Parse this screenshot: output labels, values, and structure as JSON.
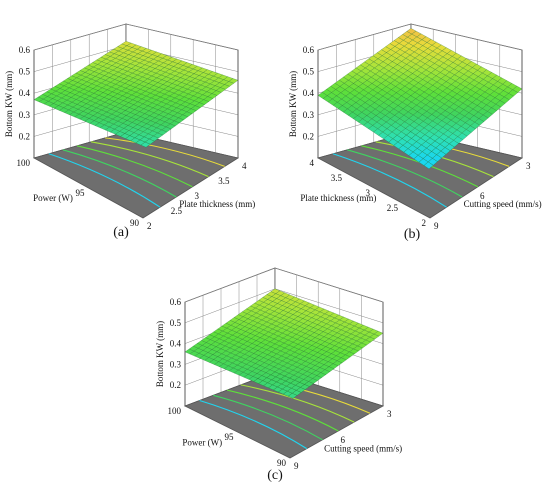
{
  "chart_data": [
    {
      "panel": "(a)",
      "type": "surface3d",
      "zlabel": "Bottom KW (mm)",
      "zticks": [
        "0.2",
        "0.3",
        "0.4",
        "0.5",
        "0.6"
      ],
      "zlim": [
        0.1,
        0.6
      ],
      "x": {
        "label": "Plate thickness (mm)",
        "ticks": [
          "2",
          "2.5",
          "3",
          "3.5",
          "4"
        ],
        "range": [
          2,
          4
        ]
      },
      "y": {
        "label": "Power (W)",
        "ticks": [
          "90",
          "95",
          "100"
        ],
        "range": [
          90,
          100
        ]
      },
      "corners": {
        "back": 0.52,
        "left": 0.37,
        "right": 0.46,
        "front": 0.27
      },
      "surface_colormap": [
        "#1ad6f0",
        "#2fe0b0",
        "#3fd460",
        "#5ee03a",
        "#a7e43a",
        "#e8dc3a",
        "#f2b04a"
      ],
      "contour_floor": true
    },
    {
      "panel": "(b)",
      "type": "surface3d",
      "zlabel": "Bottom KW (mm)",
      "zticks": [
        "0.2",
        "0.3",
        "0.4",
        "0.5",
        "0.6"
      ],
      "zlim": [
        0.1,
        0.6
      ],
      "x": {
        "label": "Cutting speed (mm/s)",
        "ticks": [
          "9",
          "6",
          "3"
        ],
        "range": [
          9,
          3
        ]
      },
      "y": {
        "label": "Plate thickness (mm)",
        "ticks": [
          "2",
          "2.5",
          "3",
          "3.5",
          "4"
        ],
        "range": [
          2,
          4
        ]
      },
      "corners": {
        "back": 0.58,
        "left": 0.39,
        "right": 0.42,
        "front": 0.17
      },
      "surface_colormap": [
        "#1ad6f0",
        "#2fe0b0",
        "#3fd460",
        "#5ee03a",
        "#a7e43a",
        "#e8dc3a",
        "#f2b04a"
      ],
      "contour_floor": true
    },
    {
      "panel": "(c)",
      "type": "surface3d",
      "zlabel": "Bottom KW (mm)",
      "zticks": [
        "0.2",
        "0.3",
        "0.4",
        "0.5",
        "0.6"
      ],
      "zlim": [
        0.1,
        0.6
      ],
      "x": {
        "label": "Cutting speed (mm/s)",
        "ticks": [
          "9",
          "6",
          "3"
        ],
        "range": [
          9,
          3
        ]
      },
      "y": {
        "label": "Power (W)",
        "ticks": [
          "90",
          "95",
          "100"
        ],
        "range": [
          90,
          100
        ]
      },
      "corners": {
        "back": 0.5,
        "left": 0.36,
        "right": 0.45,
        "front": 0.3
      },
      "surface_colormap": [
        "#1ad6f0",
        "#2fe0b0",
        "#3fd460",
        "#5ee03a",
        "#a7e43a",
        "#e8dc3a",
        "#f2b04a"
      ],
      "contour_floor": true
    }
  ],
  "captions": [
    "(a)",
    "(b)",
    "(c)"
  ],
  "colors": {
    "floor": "#6e6e6e",
    "box_line": "#555555",
    "mesh_line": "#1c6b2a"
  }
}
